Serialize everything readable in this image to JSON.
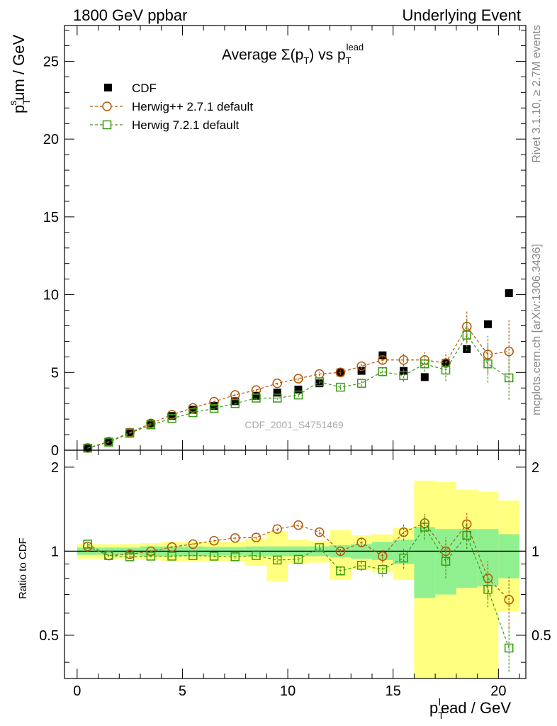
{
  "header": {
    "left": "1800 GeV ppbar",
    "right": "Underlying Event"
  },
  "side_labels": {
    "rivet": "Rivet 3.1.10, ≥ 2.7M events",
    "mcplots": "mcplots.cern.ch [arXiv:1306.3436]"
  },
  "watermark": "CDF_2001_S4751469",
  "colors": {
    "data": "#000000",
    "herwigpp": "#b35806",
    "herwig7": "#3a9a12",
    "band_outer": "#ffff80",
    "band_inner": "#90f090"
  },
  "chart_data": [
    {
      "type": "scatter",
      "title": "Average Σ(p_T) vs p_T^lead",
      "xlabel": "p_T^lead / GeV",
      "ylabel": "p_T^sum / GeV",
      "xlim": [
        -0.6,
        21.3
      ],
      "ylim": [
        0,
        27.3
      ],
      "yticks": [
        0,
        5,
        10,
        15,
        20,
        25
      ],
      "legend_position": "top-left",
      "x": [
        0.5,
        1.5,
        2.5,
        3.5,
        4.5,
        5.5,
        6.5,
        7.5,
        8.5,
        9.5,
        10.5,
        11.5,
        12.5,
        13.5,
        14.5,
        15.5,
        16.5,
        17.5,
        18.5,
        19.5,
        20.5
      ],
      "series": [
        {
          "name": "CDF",
          "marker": "filled-square",
          "values": [
            0.12,
            0.55,
            1.15,
            1.7,
            2.2,
            2.6,
            2.85,
            3.15,
            3.5,
            3.7,
            3.9,
            4.3,
            5.0,
            5.1,
            6.1,
            5.1,
            4.7,
            5.6,
            6.5,
            8.1,
            10.1
          ]
        },
        {
          "name": "Herwig++ 2.7.1 default",
          "marker": "open-circle",
          "values": [
            0.14,
            0.55,
            1.13,
            1.72,
            2.28,
            2.72,
            3.12,
            3.55,
            3.87,
            4.3,
            4.6,
            4.9,
            5.0,
            5.4,
            5.8,
            5.8,
            5.8,
            5.6,
            7.95,
            6.15,
            6.35
          ],
          "errors": [
            0.02,
            0.03,
            0.04,
            0.05,
            0.06,
            0.07,
            0.08,
            0.09,
            0.1,
            0.1,
            0.12,
            0.14,
            0.16,
            0.2,
            0.3,
            0.4,
            0.5,
            0.7,
            1.0,
            1.2,
            2.0
          ]
        },
        {
          "name": "Herwig 7.2.1 default",
          "marker": "open-square",
          "values": [
            0.13,
            0.52,
            1.09,
            1.63,
            2.04,
            2.41,
            2.69,
            3.0,
            3.35,
            3.35,
            3.55,
            4.4,
            4.05,
            4.3,
            5.05,
            4.8,
            5.55,
            5.15,
            7.4,
            5.55,
            4.65
          ],
          "errors": [
            0.02,
            0.03,
            0.04,
            0.05,
            0.06,
            0.07,
            0.08,
            0.09,
            0.1,
            0.1,
            0.12,
            0.14,
            0.16,
            0.2,
            0.3,
            0.4,
            0.5,
            0.7,
            1.0,
            1.2,
            1.4
          ]
        }
      ]
    },
    {
      "type": "scatter",
      "ylabel": "Ratio to CDF",
      "xlabel": "p_T^lead / GeV",
      "xlim": [
        -0.6,
        21.3
      ],
      "ylim": [
        0.35,
        2.3
      ],
      "yticks": [
        0.5,
        1,
        2
      ],
      "xticks": [
        0,
        5,
        10,
        15,
        20
      ],
      "reference": 1,
      "data_band_inner": [
        [
          0.0,
          1.0,
          0.97,
          1.03
        ],
        [
          1.0,
          2.0,
          0.97,
          1.03
        ],
        [
          2.0,
          3.0,
          0.97,
          1.03
        ],
        [
          3.0,
          4.0,
          0.96,
          1.04
        ],
        [
          4.0,
          5.0,
          0.96,
          1.04
        ],
        [
          5.0,
          6.0,
          0.96,
          1.04
        ],
        [
          6.0,
          7.0,
          0.965,
          1.035
        ],
        [
          7.0,
          8.0,
          0.965,
          1.035
        ],
        [
          8.0,
          9.0,
          0.96,
          1.04
        ],
        [
          9.0,
          10.0,
          0.96,
          1.04
        ],
        [
          10.0,
          11.0,
          0.96,
          1.04
        ],
        [
          11.0,
          12.0,
          0.96,
          1.04
        ],
        [
          12.0,
          13.0,
          0.95,
          1.05
        ],
        [
          13.0,
          14.0,
          0.94,
          1.06
        ],
        [
          14.0,
          15.0,
          0.93,
          1.08
        ],
        [
          15.0,
          16.0,
          0.9,
          1.1
        ],
        [
          16.0,
          17.0,
          0.68,
          1.22
        ],
        [
          17.0,
          18.0,
          0.7,
          1.2
        ],
        [
          18.0,
          19.0,
          0.74,
          1.2
        ],
        [
          19.0,
          20.0,
          0.75,
          1.2
        ],
        [
          20.0,
          21.0,
          0.8,
          1.15
        ]
      ],
      "data_band_outer": [
        [
          0.0,
          1.0,
          0.94,
          1.06
        ],
        [
          1.0,
          2.0,
          0.94,
          1.06
        ],
        [
          2.0,
          3.0,
          0.94,
          1.06
        ],
        [
          3.0,
          4.0,
          0.93,
          1.07
        ],
        [
          4.0,
          5.0,
          0.92,
          1.08
        ],
        [
          5.0,
          6.0,
          0.92,
          1.08
        ],
        [
          6.0,
          7.0,
          0.92,
          1.08
        ],
        [
          7.0,
          8.0,
          0.92,
          1.08
        ],
        [
          8.0,
          9.0,
          0.89,
          1.11
        ],
        [
          9.0,
          10.0,
          0.78,
          1.18
        ],
        [
          10.0,
          11.0,
          0.9,
          1.1
        ],
        [
          11.0,
          12.0,
          0.91,
          1.09
        ],
        [
          12.0,
          13.0,
          0.79,
          1.19
        ],
        [
          13.0,
          14.0,
          0.86,
          1.14
        ],
        [
          14.0,
          15.0,
          0.84,
          1.15
        ],
        [
          15.0,
          16.0,
          0.79,
          1.21
        ],
        [
          16.0,
          17.0,
          0.35,
          1.79
        ],
        [
          17.0,
          18.0,
          0.35,
          1.77
        ],
        [
          18.0,
          19.0,
          0.35,
          1.66
        ],
        [
          19.0,
          20.0,
          0.35,
          1.63
        ],
        [
          20.0,
          21.0,
          0.61,
          1.52
        ]
      ],
      "x": [
        0.5,
        1.5,
        2.5,
        3.5,
        4.5,
        5.5,
        6.5,
        7.5,
        8.5,
        9.5,
        10.5,
        11.5,
        12.5,
        13.5,
        14.5,
        15.5,
        16.5,
        17.5,
        18.5,
        19.5,
        20.5
      ],
      "series": [
        {
          "name": "Herwig++ 2.7.1 default",
          "values": [
            1.04,
            0.965,
            0.975,
            1.0,
            1.035,
            1.06,
            1.09,
            1.115,
            1.12,
            1.2,
            1.24,
            1.17,
            1.0,
            1.075,
            0.96,
            1.17,
            1.26,
            1.0,
            1.25,
            0.8,
            0.67
          ],
          "errors": [
            0.01,
            0.01,
            0.01,
            0.01,
            0.01,
            0.01,
            0.01,
            0.015,
            0.015,
            0.02,
            0.02,
            0.025,
            0.03,
            0.04,
            0.05,
            0.08,
            0.1,
            0.12,
            0.12,
            0.12,
            0.14
          ]
        },
        {
          "name": "Herwig 7.2.1 default",
          "values": [
            1.06,
            0.965,
            0.955,
            0.96,
            0.96,
            0.965,
            0.96,
            0.955,
            0.965,
            0.93,
            0.935,
            1.03,
            0.85,
            0.89,
            0.86,
            0.945,
            1.22,
            0.92,
            1.14,
            0.73,
            0.45
          ],
          "errors": [
            0.01,
            0.01,
            0.01,
            0.01,
            0.01,
            0.01,
            0.01,
            0.015,
            0.015,
            0.02,
            0.02,
            0.025,
            0.03,
            0.04,
            0.05,
            0.08,
            0.12,
            0.12,
            0.12,
            0.1,
            0.08
          ]
        }
      ]
    }
  ]
}
